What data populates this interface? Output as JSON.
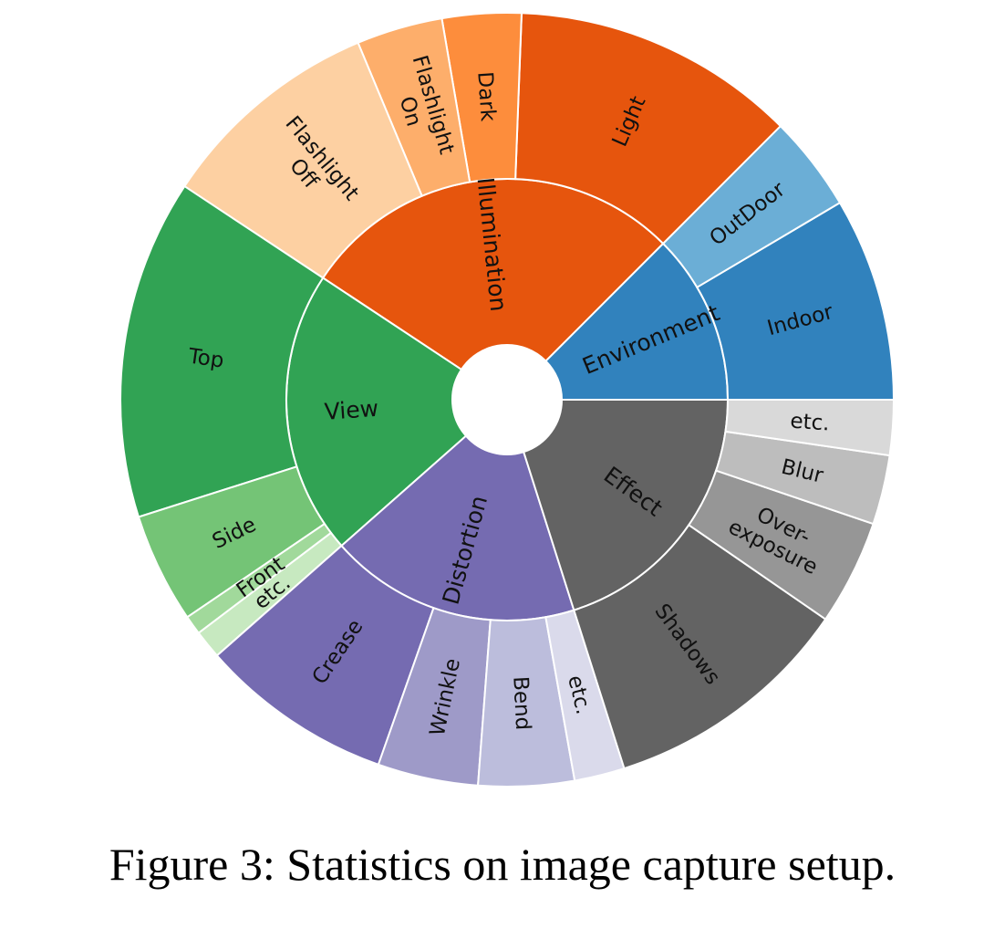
{
  "caption": "Figure 3: Statistics on image capture setup.",
  "chart_data": {
    "type": "sunburst",
    "title": "",
    "unit": "angular share of ring, percent (estimated from slice angles)",
    "groups": [
      {
        "name": "Environment",
        "color": "#3182bd",
        "value": 12.5,
        "children": [
          {
            "name": "Indoor",
            "color": "#3182bd",
            "value": 8.5
          },
          {
            "name": "OutDoor",
            "color": "#6baed6",
            "value": 4.0
          }
        ]
      },
      {
        "name": "Illumination",
        "color": "#e6550d",
        "value": 28.2,
        "children": [
          {
            "name": "Light",
            "color": "#e6550d",
            "value": 11.9
          },
          {
            "name": "Dark",
            "color": "#fd8d3c",
            "value": 3.3
          },
          {
            "name": "Flashlight On",
            "label_lines": [
              "Flashlight",
              "On"
            ],
            "color": "#fdae6b",
            "value": 3.6
          },
          {
            "name": "Flashlight Off",
            "label_lines": [
              "Flashlight",
              "Off"
            ],
            "color": "#fdd0a2",
            "value": 9.4
          }
        ]
      },
      {
        "name": "View",
        "color": "#31a354",
        "value": 20.8,
        "children": [
          {
            "name": "Top",
            "color": "#31a354",
            "value": 14.2
          },
          {
            "name": "Side",
            "color": "#74c476",
            "value": 4.6
          },
          {
            "name": "Front",
            "color": "#a1d99b",
            "value": 0.8
          },
          {
            "name": "etc.",
            "color": "#c7e9c0",
            "value": 1.2
          }
        ]
      },
      {
        "name": "Distortion",
        "color": "#756bb1",
        "value": 18.4,
        "children": [
          {
            "name": "Crease",
            "color": "#756bb1",
            "value": 8.1
          },
          {
            "name": "Wrinkle",
            "color": "#9e9ac8",
            "value": 4.2
          },
          {
            "name": "Bend",
            "color": "#bcbddc",
            "value": 4.0
          },
          {
            "name": "etc.",
            "color": "#dadaeb",
            "value": 2.1
          }
        ]
      },
      {
        "name": "Effect",
        "color": "#636363",
        "value": 20.1,
        "children": [
          {
            "name": "Shadows",
            "color": "#636363",
            "value": 10.5
          },
          {
            "name": "Over-exposure",
            "label_lines": [
              "Over-",
              "exposure"
            ],
            "color": "#969696",
            "value": 4.4
          },
          {
            "name": "Blur",
            "color": "#bdbdbd",
            "value": 2.9
          },
          {
            "name": "etc.",
            "color": "#d9d9d9",
            "value": 2.3
          }
        ]
      }
    ]
  }
}
